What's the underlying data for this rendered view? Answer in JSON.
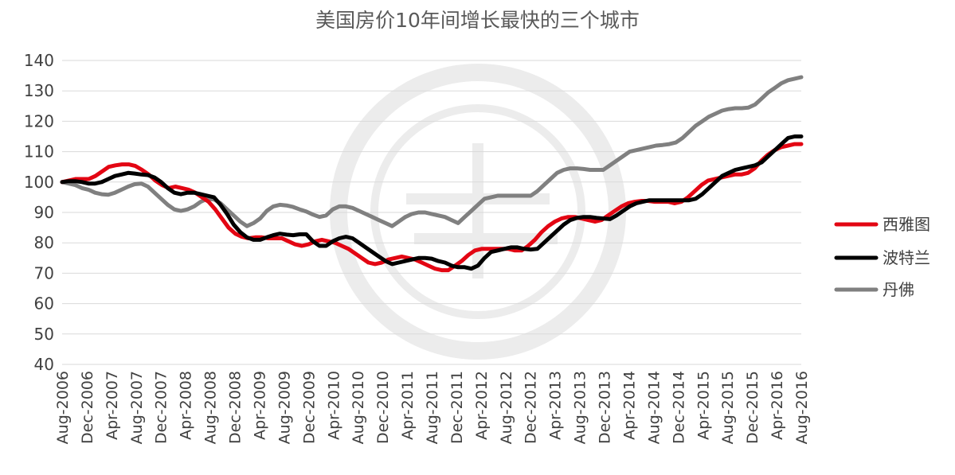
{
  "chart_data": {
    "type": "line",
    "title": "美国房价10年间增长最快的三个城市",
    "xlabel": "",
    "ylabel": "",
    "ylim": [
      40,
      140
    ],
    "yticks": [
      40,
      50,
      60,
      70,
      80,
      90,
      100,
      110,
      120,
      130,
      140
    ],
    "grid": true,
    "legend_position": "right",
    "x_ticks": [
      "Aug-2006",
      "Dec-2006",
      "Apr-2007",
      "Aug-2007",
      "Dec-2007",
      "Apr-2008",
      "Aug-2008",
      "Dec-2008",
      "Apr-2009",
      "Aug-2009",
      "Dec-2009",
      "Apr-2010",
      "Aug-2010",
      "Dec-2010",
      "Apr-2011",
      "Aug-2011",
      "Dec-2011",
      "Apr-2012",
      "Aug-2012",
      "Dec-2012",
      "Apr-2013",
      "Aug-2013",
      "Dec-2013",
      "Apr-2014",
      "Aug-2014",
      "Dec-2014",
      "Apr-2015",
      "Aug-2015",
      "Dec-2015",
      "Apr-2016",
      "Aug-2016"
    ],
    "series": [
      {
        "name": "西雅图",
        "color": "#e30613",
        "values": [
          100,
          100.5,
          101,
          101,
          101,
          102,
          103.5,
          105,
          105.5,
          105.8,
          105.8,
          105.3,
          104,
          102.5,
          100.5,
          99,
          98,
          98.5,
          98,
          97.5,
          96.5,
          95,
          93.5,
          91,
          88,
          85,
          83,
          82,
          81.5,
          81.8,
          81.8,
          81.5,
          81.5,
          81.5,
          80.5,
          79.5,
          79,
          79.5,
          80.5,
          81,
          80.5,
          80,
          79,
          78,
          76.5,
          75,
          73.5,
          73,
          73.5,
          74.5,
          75,
          75.5,
          75,
          74.5,
          73.5,
          72.5,
          71.5,
          71,
          71,
          72.5,
          74,
          76,
          77.5,
          78,
          78,
          78,
          78,
          78,
          77.5,
          77.5,
          79,
          81,
          83.5,
          85.5,
          87,
          88,
          88.5,
          88.5,
          88,
          87.5,
          87,
          87.5,
          89,
          90.5,
          92,
          93,
          93.5,
          93.8,
          93.8,
          93.5,
          93.5,
          93.5,
          93,
          93.5,
          95,
          97,
          99,
          100.5,
          101,
          101.5,
          102,
          102.5,
          102.5,
          103,
          104.5,
          107,
          109,
          110.5,
          111.5,
          112,
          112.5,
          112.5
        ]
      },
      {
        "name": "波特兰",
        "color": "#000000",
        "values": [
          100,
          100.3,
          100.3,
          100,
          99.5,
          99.5,
          100,
          101,
          102,
          102.5,
          103,
          102.8,
          102.5,
          102.3,
          101.5,
          100,
          98,
          96.5,
          96,
          96.5,
          96.5,
          96,
          95.5,
          95,
          92.5,
          89.5,
          86,
          83.5,
          81.8,
          81,
          81,
          81.8,
          82.5,
          83,
          82.7,
          82.5,
          82.8,
          82.8,
          80.5,
          79,
          79,
          80.5,
          81.5,
          82,
          81.5,
          80,
          78.5,
          77,
          75.5,
          74,
          73,
          73.5,
          74,
          74.5,
          75,
          75,
          74.8,
          74,
          73.5,
          72.5,
          72,
          72,
          71.5,
          72.5,
          75,
          77,
          77.5,
          78,
          78.5,
          78.5,
          78,
          77.8,
          78,
          80,
          82,
          84,
          86,
          87.5,
          88.2,
          88.5,
          88.5,
          88.2,
          88,
          87.8,
          89,
          90.5,
          92,
          93,
          93.5,
          94,
          94,
          94,
          94,
          94,
          94,
          94,
          94.5,
          96,
          98,
          100,
          102,
          103,
          104,
          104.5,
          105,
          105.5,
          106.5,
          108.5,
          110.5,
          112.5,
          114.5,
          115,
          115
        ]
      },
      {
        "name": "丹佛",
        "color": "#808080",
        "values": [
          100,
          99.5,
          99,
          98,
          97.5,
          96.5,
          96,
          95.8,
          96.5,
          97.5,
          98.5,
          99.3,
          99.5,
          98.5,
          96.5,
          94.5,
          92.5,
          91,
          90.5,
          91,
          92,
          93.5,
          94.5,
          94.3,
          93,
          91,
          89,
          87,
          85.5,
          86.5,
          88,
          90.5,
          92,
          92.5,
          92.3,
          91.8,
          91,
          90.3,
          89.3,
          88.5,
          89,
          91,
          92,
          92,
          91.5,
          90.5,
          89.5,
          88.5,
          87.5,
          86.5,
          85.5,
          87,
          88.5,
          89.5,
          90,
          90,
          89.5,
          89,
          88.5,
          87.5,
          86.5,
          88.5,
          90.5,
          92.5,
          94.5,
          95,
          95.5,
          95.5,
          95.5,
          95.5,
          95.5,
          95.5,
          97,
          99,
          101,
          103,
          104,
          104.5,
          104.5,
          104.3,
          104,
          104,
          104,
          105.5,
          107,
          108.5,
          110,
          110.5,
          111,
          111.5,
          112,
          112.2,
          112.5,
          113,
          114.5,
          116.5,
          118.5,
          120,
          121.5,
          122.5,
          123.5,
          124,
          124.3,
          124.3,
          124.5,
          125.5,
          127.5,
          129.5,
          131,
          132.5,
          133.5,
          134,
          134.5
        ]
      }
    ]
  }
}
